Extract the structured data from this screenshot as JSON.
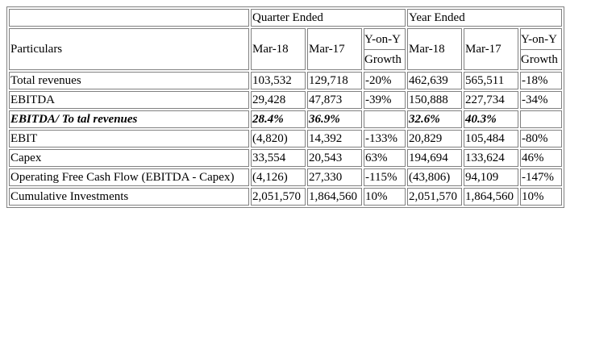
{
  "table": {
    "header": {
      "group_quarter": "Quarter Ended",
      "group_year": "Year Ended",
      "particulars": "Particulars",
      "q_mar18": "Mar-18",
      "q_mar17": "Mar-17",
      "q_growth_top": "Y-on-Y",
      "q_growth_bottom": "Growth",
      "y_mar18": "Mar-18",
      "y_mar17": "Mar-17",
      "y_growth_top": "Y-on-Y",
      "y_growth_bottom": "Growth"
    },
    "rows": [
      {
        "label": "Total revenues",
        "q18": "103,532",
        "q17": "129,718",
        "qg": "-20%",
        "y18": "462,639",
        "y17": "565,511",
        "yg": "-18%"
      },
      {
        "label": "EBITDA",
        "q18": "29,428",
        "q17": "47,873",
        "qg": "-39%",
        "y18": "150,888",
        "y17": "227,734",
        "yg": "-34%"
      },
      {
        "label": "EBITDA/ To tal revenues",
        "q18": "28.4%",
        "q17": "36.9%",
        "qg": "",
        "y18": "32.6%",
        "y17": "40.3%",
        "yg": ""
      },
      {
        "label": "EBIT",
        "q18": "(4,820)",
        "q17": "14,392",
        "qg": "-133%",
        "y18": "20,829",
        "y17": "105,484",
        "yg": "-80%"
      },
      {
        "label": "Capex",
        "q18": "33,554",
        "q17": "20,543",
        "qg": "63%",
        "y18": "194,694",
        "y17": "133,624",
        "yg": "46%"
      },
      {
        "label": "Operating Free Cash Flow (EBITDA - Capex)",
        "q18": "(4,126)",
        "q17": "27,330",
        "qg": "-115%",
        "y18": "(43,806)",
        "y17": "94,109",
        "yg": "-147%"
      },
      {
        "label": "Cumulative Investments",
        "q18": "2,051,570",
        "q17": "1,864,560",
        "qg": "10%",
        "y18": "2,051,570",
        "y17": "1,864,560",
        "yg": "10%"
      }
    ]
  }
}
